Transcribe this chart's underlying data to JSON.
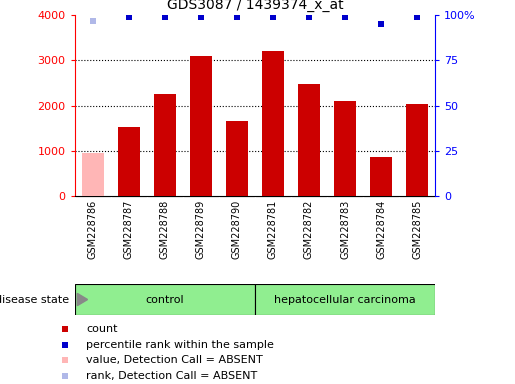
{
  "title": "GDS3087 / 1439374_x_at",
  "samples": [
    "GSM228786",
    "GSM228787",
    "GSM228788",
    "GSM228789",
    "GSM228790",
    "GSM228781",
    "GSM228782",
    "GSM228783",
    "GSM228784",
    "GSM228785"
  ],
  "counts": [
    950,
    1520,
    2250,
    3100,
    1660,
    3200,
    2480,
    2100,
    870,
    2040
  ],
  "count_absent": [
    true,
    false,
    false,
    false,
    false,
    false,
    false,
    false,
    false,
    false
  ],
  "percentile_ranks": [
    97,
    99,
    99,
    99,
    99,
    99,
    99,
    99,
    95,
    99
  ],
  "rank_absent": [
    true,
    false,
    false,
    false,
    false,
    false,
    false,
    false,
    false,
    false
  ],
  "ylim_left": [
    0,
    4000
  ],
  "ylim_right": [
    0,
    100
  ],
  "yticks_left": [
    0,
    1000,
    2000,
    3000,
    4000
  ],
  "yticks_right": [
    0,
    25,
    50,
    75,
    100
  ],
  "bar_color_normal": "#cc0000",
  "bar_color_absent": "#ffb6b6",
  "scatter_color_normal": "#0000cc",
  "scatter_color_absent": "#b0b8e8",
  "control_label": "control",
  "cancer_label": "hepatocellular carcinoma",
  "disease_state_label": "disease state",
  "control_count": 5,
  "cancer_count": 5,
  "legend_items": [
    {
      "label": "count",
      "color": "#cc0000"
    },
    {
      "label": "percentile rank within the sample",
      "color": "#0000cc"
    },
    {
      "label": "value, Detection Call = ABSENT",
      "color": "#ffb6b6"
    },
    {
      "label": "rank, Detection Call = ABSENT",
      "color": "#b0b8e8"
    }
  ],
  "background_color": "#ffffff",
  "control_bg": "#90ee90",
  "cancer_bg": "#90ee90",
  "tick_area_bg": "#d3d3d3"
}
